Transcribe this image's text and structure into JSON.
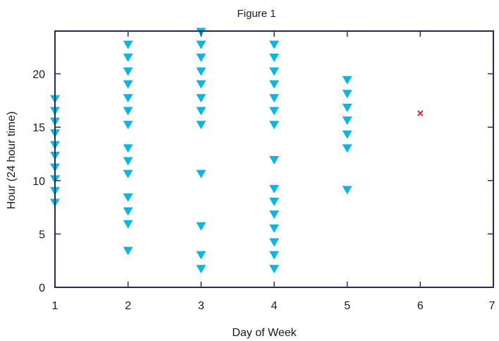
{
  "chart_data": {
    "type": "scatter",
    "title": "Figure 1",
    "xlabel": "Day of Week",
    "ylabel": "Hour (24 hour time)",
    "xlim": [
      1,
      7
    ],
    "ylim": [
      0,
      24
    ],
    "xticks": [
      1,
      2,
      3,
      4,
      5,
      6,
      7
    ],
    "yticks": [
      0,
      5,
      10,
      15,
      20
    ],
    "grid": false,
    "frame_color": "#1f2f5a",
    "series": [
      {
        "marker": "triangle-down",
        "color": "#10b4e0",
        "points": [
          [
            1,
            17.6
          ],
          [
            1,
            16.5
          ],
          [
            1,
            15.5
          ],
          [
            1,
            14.4
          ],
          [
            1,
            13.3
          ],
          [
            1,
            12.3
          ],
          [
            1,
            11.2
          ],
          [
            1,
            10.1
          ],
          [
            1,
            9.0
          ],
          [
            1,
            7.9
          ],
          [
            2,
            22.7
          ],
          [
            2,
            21.5
          ],
          [
            2,
            20.2
          ],
          [
            2,
            19.0
          ],
          [
            2,
            17.7
          ],
          [
            2,
            16.5
          ],
          [
            2,
            15.2
          ],
          [
            2,
            13.0
          ],
          [
            2,
            11.8
          ],
          [
            2,
            10.6
          ],
          [
            2,
            8.4
          ],
          [
            2,
            7.1
          ],
          [
            2,
            5.9
          ],
          [
            2,
            3.4
          ],
          [
            3,
            23.9
          ],
          [
            3,
            22.7
          ],
          [
            3,
            21.5
          ],
          [
            3,
            20.2
          ],
          [
            3,
            19.0
          ],
          [
            3,
            17.7
          ],
          [
            3,
            16.5
          ],
          [
            3,
            15.2
          ],
          [
            3,
            10.6
          ],
          [
            3,
            5.7
          ],
          [
            3,
            3.0
          ],
          [
            3,
            1.7
          ],
          [
            4,
            22.7
          ],
          [
            4,
            21.5
          ],
          [
            4,
            20.2
          ],
          [
            4,
            19.0
          ],
          [
            4,
            17.7
          ],
          [
            4,
            16.5
          ],
          [
            4,
            15.2
          ],
          [
            4,
            11.9
          ],
          [
            4,
            9.2
          ],
          [
            4,
            8.0
          ],
          [
            4,
            6.8
          ],
          [
            4,
            5.5
          ],
          [
            4,
            4.2
          ],
          [
            4,
            3.0
          ],
          [
            4,
            1.7
          ],
          [
            5,
            19.4
          ],
          [
            5,
            18.1
          ],
          [
            5,
            16.8
          ],
          [
            5,
            15.6
          ],
          [
            5,
            14.3
          ],
          [
            5,
            13.0
          ],
          [
            5,
            9.1
          ]
        ]
      },
      {
        "marker": "x",
        "color": "#e0202a",
        "points": [
          [
            6,
            16.3
          ]
        ]
      }
    ]
  }
}
